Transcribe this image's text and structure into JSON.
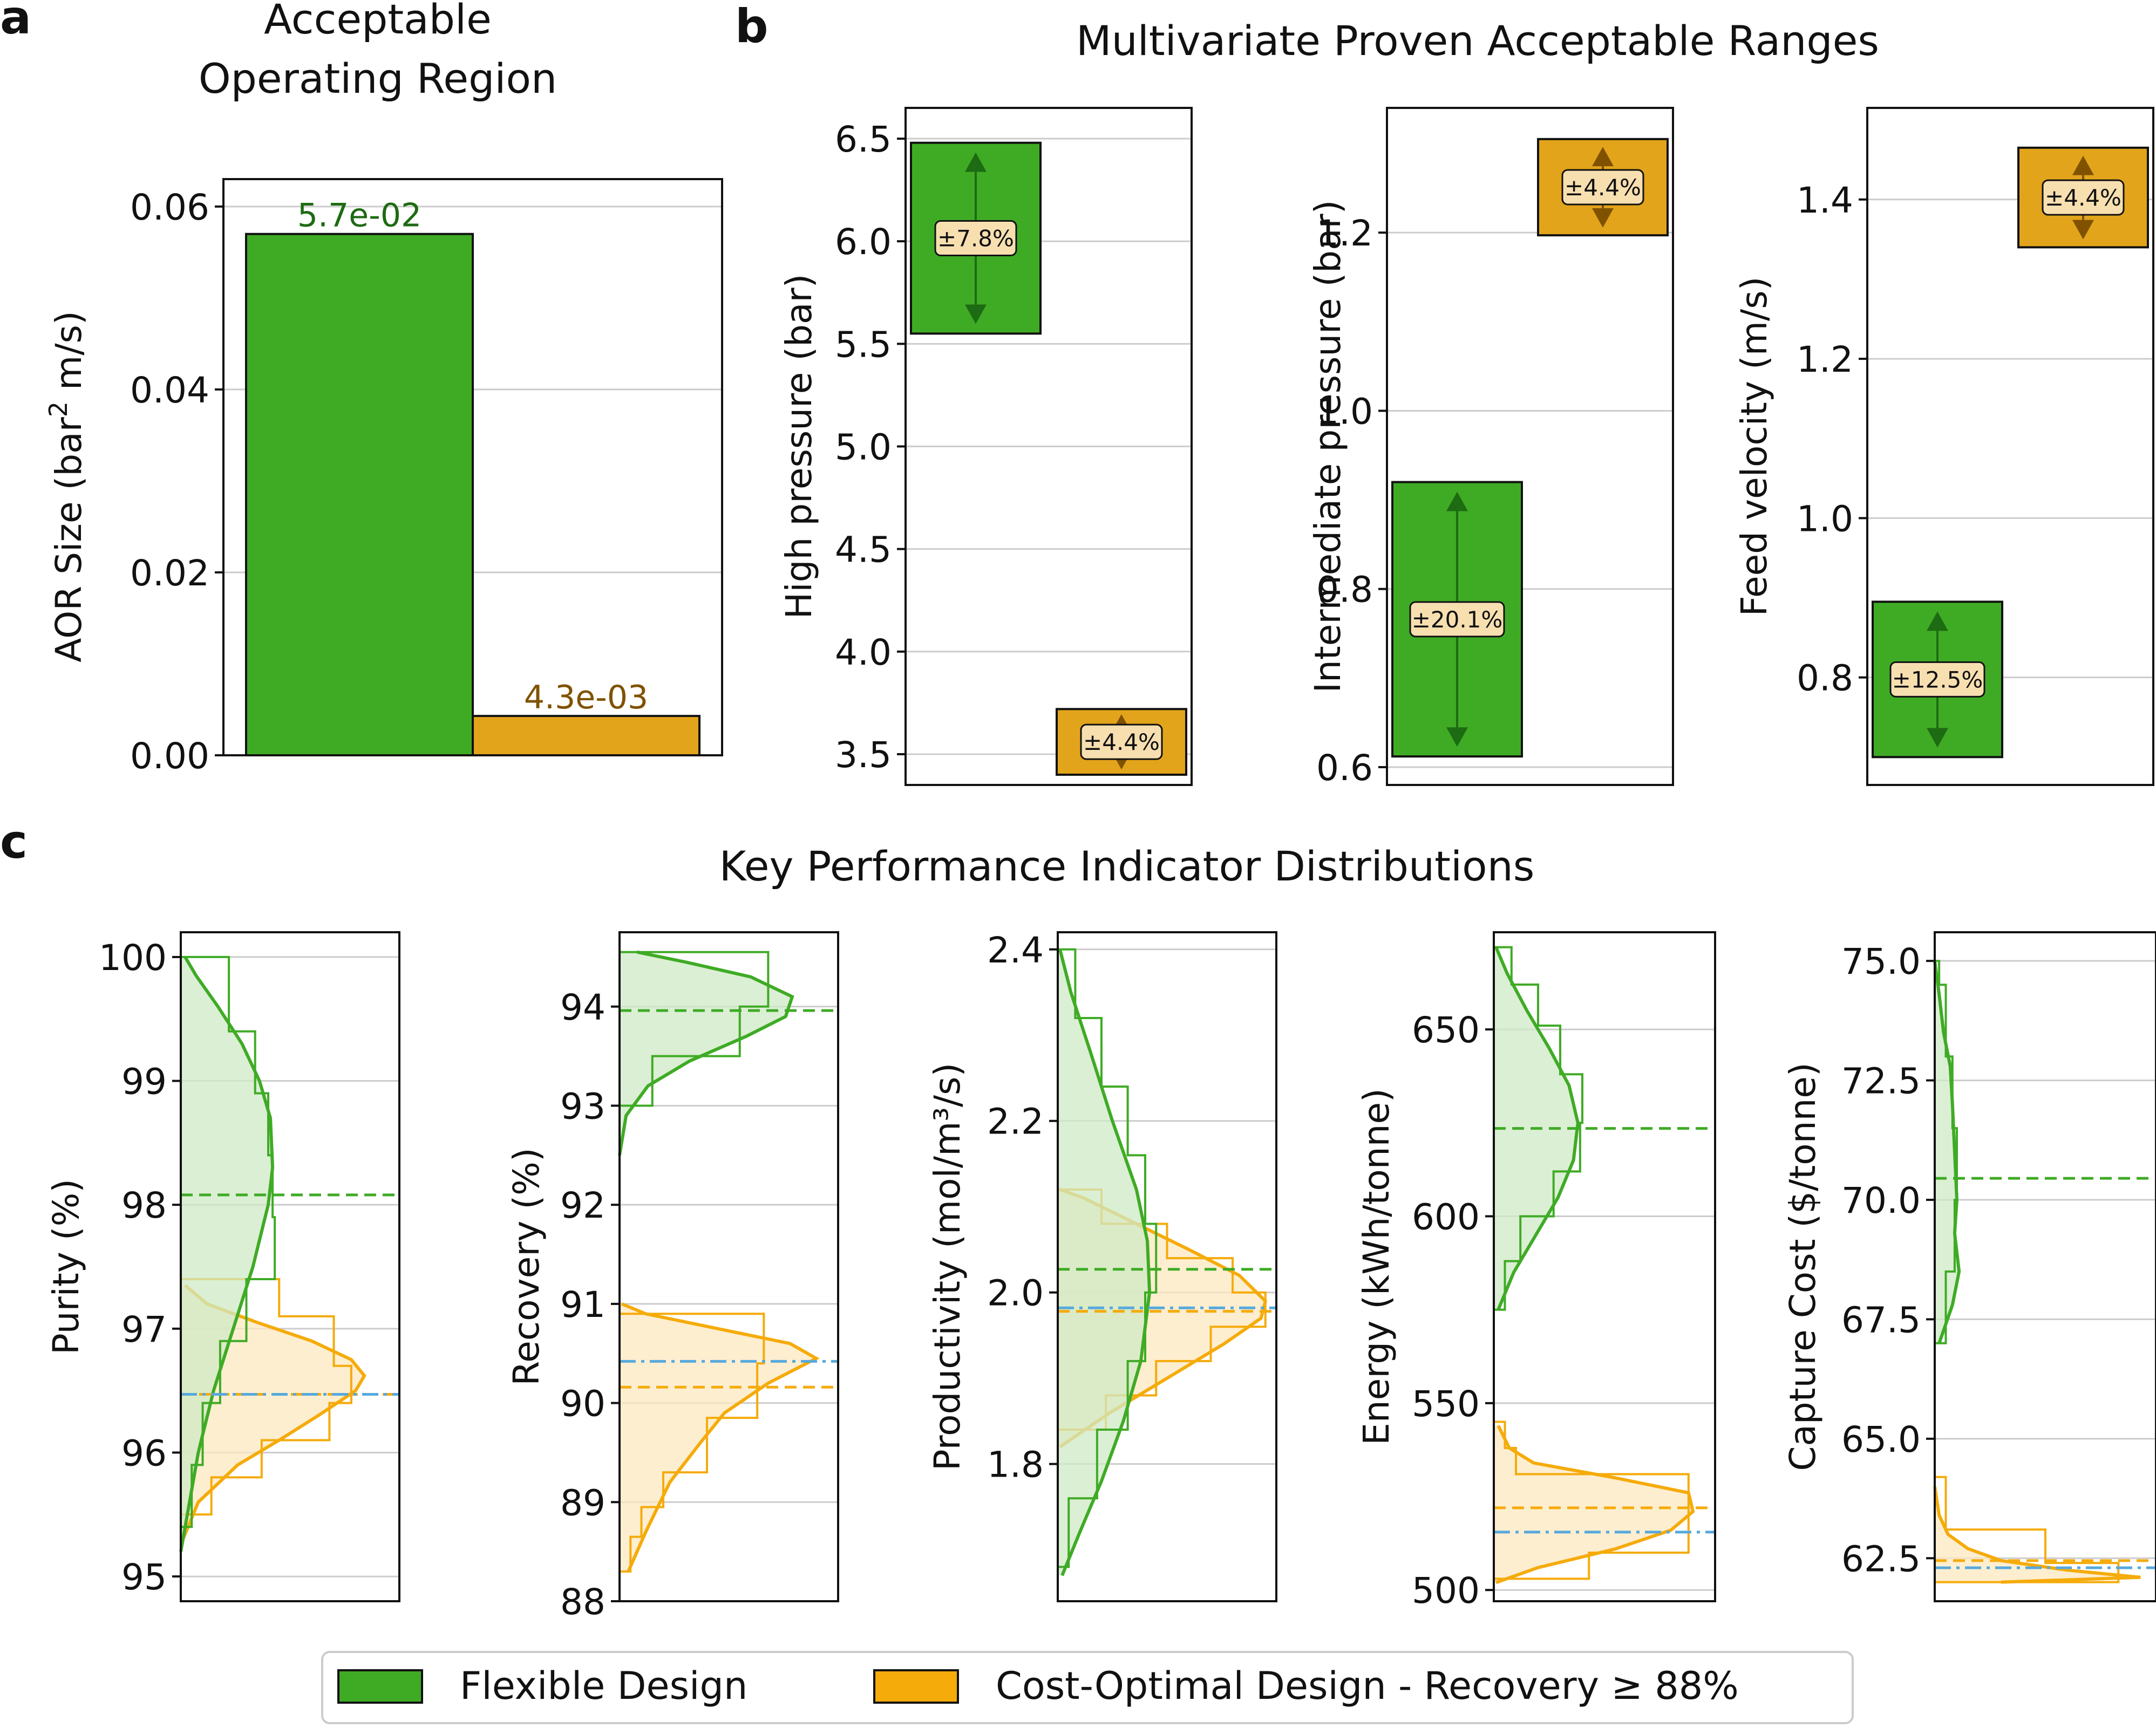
{
  "colors": {
    "flexible": "#3fab25",
    "flexible_dark": "#1d6b12",
    "flexible_fill": "#cfe9c6",
    "costopt": "#e2a41a",
    "costopt_line": "#f5ab0a",
    "costopt_fill": "#fde8c0",
    "costopt_dark": "#805200",
    "label_box": "#f7dfb0",
    "blue": "#56a9dc"
  },
  "panel_labels": {
    "a": "a",
    "b": "b",
    "c": "c"
  },
  "panel_a": {
    "title_line1": "Acceptable",
    "title_line2": "Operating Region",
    "ylabel_main": "AOR Size (bar",
    "ylabel_sup": "2",
    "ylabel_end": " m/s)"
  },
  "panel_b": {
    "title": "Multivariate Proven Acceptable Ranges"
  },
  "panel_c": {
    "title": "Key Performance Indicator Distributions"
  },
  "legend": {
    "flexible": "Flexible Design",
    "costopt": "Cost-Optimal Design - Recovery ≥ 88%"
  },
  "chart_data": [
    {
      "id": "aor",
      "type": "bar",
      "categories": [
        "Flexible Design",
        "Cost-Optimal Design - Recovery ≥ 88%"
      ],
      "values": [
        0.057,
        0.0043
      ],
      "data_labels": [
        "5.7e-02",
        "4.3e-03"
      ],
      "ylabel": "AOR Size (bar² m/s)",
      "ylim": [
        0,
        0.063
      ],
      "yticks": [
        0.0,
        0.02,
        0.04,
        0.06
      ],
      "ytick_labels": [
        "0.00",
        "0.02",
        "0.04",
        "0.06"
      ]
    },
    {
      "id": "par_high",
      "type": "range",
      "ylabel": "High pressure (bar)",
      "ylim": [
        3.35,
        6.65
      ],
      "yticks": [
        3.5,
        4.0,
        4.5,
        5.0,
        5.5,
        6.0,
        6.5
      ],
      "ytick_labels": [
        "3.5",
        "4.0",
        "4.5",
        "5.0",
        "5.5",
        "6.0",
        "6.5"
      ],
      "flexible": {
        "low": 5.55,
        "high": 6.48,
        "label": "±7.8%"
      },
      "costopt": {
        "low": 3.4,
        "high": 3.72,
        "label": "±4.4%"
      }
    },
    {
      "id": "par_intermediate",
      "type": "range",
      "ylabel": "Intermediate pressure (bar)",
      "ylim": [
        0.58,
        1.34
      ],
      "yticks": [
        0.6,
        0.8,
        1.0,
        1.2
      ],
      "ytick_labels": [
        "0.6",
        "0.8",
        "1.0",
        "1.2"
      ],
      "flexible": {
        "low": 0.612,
        "high": 0.92,
        "label": "±20.1%"
      },
      "costopt": {
        "low": 1.197,
        "high": 1.305,
        "label": "±4.4%"
      }
    },
    {
      "id": "par_velocity",
      "type": "range",
      "ylabel": "Feed velocity (m/s)",
      "ylim": [
        0.665,
        1.515
      ],
      "yticks": [
        0.8,
        1.0,
        1.2,
        1.4
      ],
      "ytick_labels": [
        "0.8",
        "1.0",
        "1.2",
        "1.4"
      ],
      "flexible": {
        "low": 0.7,
        "high": 0.895,
        "label": "±12.5%"
      },
      "costopt": {
        "low": 1.34,
        "high": 1.465,
        "label": "±4.4%"
      }
    },
    {
      "id": "kpi_purity",
      "type": "histogram",
      "ylabel": "Purity  (%)",
      "ylim": [
        94.8,
        100.2
      ],
      "yticks": [
        95,
        96,
        97,
        98,
        99,
        100
      ],
      "ytick_labels": [
        "95",
        "96",
        "97",
        "98",
        "99",
        "100"
      ],
      "xmax": 1.0,
      "flexible": {
        "hist_edges": [
          95.4,
          95.9,
          96.4,
          96.9,
          97.4,
          97.9,
          98.4,
          98.9,
          99.4,
          100.0
        ],
        "hist_counts": [
          0.05,
          0.1,
          0.18,
          0.3,
          0.43,
          0.42,
          0.4,
          0.34,
          0.22
        ],
        "mean": 98.08,
        "kde": [
          [
            95.2,
            0.0
          ],
          [
            95.6,
            0.04
          ],
          [
            96.0,
            0.08
          ],
          [
            96.5,
            0.15
          ],
          [
            97.0,
            0.24
          ],
          [
            97.5,
            0.33
          ],
          [
            98.0,
            0.4
          ],
          [
            98.3,
            0.42
          ],
          [
            98.7,
            0.41
          ],
          [
            99.0,
            0.36
          ],
          [
            99.3,
            0.28
          ],
          [
            99.6,
            0.17
          ],
          [
            99.85,
            0.07
          ],
          [
            100.0,
            0.02
          ]
        ]
      },
      "costopt": {
        "hist_edges": [
          95.5,
          95.8,
          96.1,
          96.4,
          96.7,
          97.1,
          97.4
        ],
        "hist_counts": [
          0.14,
          0.37,
          0.68,
          0.78,
          0.7,
          0.45
        ],
        "mean": 96.47,
        "median": 96.47,
        "kde": [
          [
            95.3,
            0.01
          ],
          [
            95.6,
            0.08
          ],
          [
            95.9,
            0.26
          ],
          [
            96.1,
            0.45
          ],
          [
            96.3,
            0.63
          ],
          [
            96.5,
            0.8
          ],
          [
            96.62,
            0.84
          ],
          [
            96.75,
            0.78
          ],
          [
            96.9,
            0.6
          ],
          [
            97.05,
            0.35
          ],
          [
            97.2,
            0.12
          ],
          [
            97.35,
            0.02
          ]
        ]
      }
    },
    {
      "id": "kpi_recovery",
      "type": "histogram",
      "ylabel": "Recovery  (%)",
      "ylim": [
        88.0,
        94.75
      ],
      "yticks": [
        88,
        89,
        90,
        91,
        92,
        93,
        94
      ],
      "ytick_labels": [
        "88",
        "89",
        "90",
        "91",
        "92",
        "93",
        "94"
      ],
      "xmax": 1.0,
      "flexible": {
        "hist_edges": [
          93.0,
          93.5,
          94.0,
          94.55
        ],
        "hist_counts": [
          0.15,
          0.55,
          0.68
        ],
        "mean": 93.96,
        "kde": [
          [
            92.5,
            0.0
          ],
          [
            92.9,
            0.03
          ],
          [
            93.2,
            0.13
          ],
          [
            93.45,
            0.32
          ],
          [
            93.7,
            0.58
          ],
          [
            93.9,
            0.76
          ],
          [
            94.1,
            0.79
          ],
          [
            94.3,
            0.6
          ],
          [
            94.45,
            0.3
          ],
          [
            94.55,
            0.08
          ]
        ]
      },
      "costopt": {
        "hist_edges": [
          88.3,
          88.65,
          88.95,
          89.3,
          89.85,
          90.4,
          90.9
        ],
        "hist_counts": [
          0.05,
          0.1,
          0.2,
          0.4,
          0.63,
          0.66
        ],
        "mean": 90.16,
        "median": 90.42,
        "kde": [
          [
            88.3,
            0.04
          ],
          [
            88.7,
            0.12
          ],
          [
            89.2,
            0.23
          ],
          [
            89.6,
            0.37
          ],
          [
            89.9,
            0.48
          ],
          [
            90.2,
            0.68
          ],
          [
            90.45,
            0.9
          ],
          [
            90.6,
            0.78
          ],
          [
            90.75,
            0.45
          ],
          [
            90.9,
            0.12
          ],
          [
            91.0,
            0.01
          ]
        ]
      }
    },
    {
      "id": "kpi_productivity",
      "type": "histogram",
      "ylabel": "Productivity  (mol/m³/s)",
      "ylim": [
        1.64,
        2.42
      ],
      "yticks": [
        1.8,
        2.0,
        2.2,
        2.4
      ],
      "ytick_labels": [
        "1.8",
        "2.0",
        "2.2",
        "2.4"
      ],
      "xmax": 1.0,
      "flexible": {
        "hist_edges": [
          1.68,
          1.76,
          1.84,
          1.92,
          2.0,
          2.08,
          2.16,
          2.24,
          2.32,
          2.4
        ],
        "hist_counts": [
          0.05,
          0.18,
          0.32,
          0.4,
          0.45,
          0.4,
          0.32,
          0.2,
          0.08
        ],
        "mean": 2.027,
        "kde": [
          [
            1.67,
            0.02
          ],
          [
            1.72,
            0.1
          ],
          [
            1.78,
            0.2
          ],
          [
            1.85,
            0.3
          ],
          [
            1.92,
            0.38
          ],
          [
            2.0,
            0.42
          ],
          [
            2.06,
            0.41
          ],
          [
            2.12,
            0.36
          ],
          [
            2.2,
            0.25
          ],
          [
            2.28,
            0.15
          ],
          [
            2.35,
            0.06
          ],
          [
            2.4,
            0.01
          ]
        ]
      },
      "costopt": {
        "hist_edges": [
          1.84,
          1.88,
          1.92,
          1.96,
          2.0,
          2.04,
          2.08,
          2.12
        ],
        "hist_counts": [
          0.22,
          0.45,
          0.7,
          0.95,
          0.8,
          0.5,
          0.2
        ],
        "mean": 1.978,
        "median": 1.982,
        "kde": [
          [
            1.82,
            0.01
          ],
          [
            1.86,
            0.24
          ],
          [
            1.9,
            0.5
          ],
          [
            1.94,
            0.76
          ],
          [
            1.97,
            0.93
          ],
          [
            1.99,
            0.95
          ],
          [
            2.02,
            0.83
          ],
          [
            2.05,
            0.6
          ],
          [
            2.08,
            0.36
          ],
          [
            2.11,
            0.12
          ],
          [
            2.12,
            0.01
          ]
        ]
      }
    },
    {
      "id": "kpi_energy",
      "type": "histogram",
      "ylabel": "Energy  (kWh/tonne)",
      "ylim": [
        497,
        676
      ],
      "yticks": [
        500,
        550,
        600,
        650
      ],
      "ytick_labels": [
        "500",
        "550",
        "600",
        "650"
      ],
      "xmax": 1.0,
      "flexible": {
        "hist_edges": [
          575,
          588,
          600,
          612,
          625,
          638,
          651,
          662,
          672
        ],
        "hist_counts": [
          0.05,
          0.12,
          0.27,
          0.39,
          0.4,
          0.3,
          0.2,
          0.08
        ],
        "mean": 623.5,
        "kde": [
          [
            575,
            0.02
          ],
          [
            585,
            0.09
          ],
          [
            595,
            0.19
          ],
          [
            605,
            0.29
          ],
          [
            615,
            0.36
          ],
          [
            625,
            0.38
          ],
          [
            635,
            0.34
          ],
          [
            645,
            0.25
          ],
          [
            655,
            0.15
          ],
          [
            665,
            0.06
          ],
          [
            672,
            0.01
          ]
        ]
      },
      "costopt": {
        "hist_edges": [
          503,
          510,
          517,
          524,
          531,
          538,
          545
        ],
        "hist_counts": [
          0.43,
          0.88,
          0.88,
          0.88,
          0.1,
          0.05
        ],
        "mean": 522.0,
        "median": 515.5,
        "kde": [
          [
            502,
            0.01
          ],
          [
            506,
            0.2
          ],
          [
            511,
            0.55
          ],
          [
            516,
            0.8
          ],
          [
            521,
            0.9
          ],
          [
            526,
            0.88
          ],
          [
            530,
            0.55
          ],
          [
            534,
            0.18
          ],
          [
            538,
            0.07
          ],
          [
            544,
            0.02
          ]
        ]
      }
    },
    {
      "id": "kpi_cost",
      "type": "histogram",
      "ylabel": "Capture Cost  ($/tonne)",
      "ylim": [
        61.6,
        75.6
      ],
      "yticks": [
        62.5,
        65.0,
        67.5,
        70.0,
        72.5,
        75.0
      ],
      "ytick_labels": [
        "62.5",
        "65.0",
        "67.5",
        "70.0",
        "72.5",
        "75.0"
      ],
      "xmax": 1.0,
      "flexible": {
        "hist_edges": [
          67.0,
          68.5,
          70.0,
          71.5,
          73.0,
          74.5,
          75.0
        ],
        "hist_counts": [
          0.05,
          0.09,
          0.1,
          0.08,
          0.05,
          0.02
        ],
        "mean": 70.45,
        "kde": [
          [
            67.0,
            0.02
          ],
          [
            67.8,
            0.08
          ],
          [
            68.5,
            0.11
          ],
          [
            69.3,
            0.09
          ],
          [
            70.0,
            0.1
          ],
          [
            71.0,
            0.09
          ],
          [
            72.0,
            0.08
          ],
          [
            72.8,
            0.07
          ],
          [
            73.5,
            0.04
          ],
          [
            74.3,
            0.02
          ],
          [
            75.0,
            0.0
          ]
        ]
      },
      "costopt": {
        "hist_edges": [
          62.0,
          62.4,
          62.8,
          63.1,
          64.2
        ],
        "hist_counts": [
          0.83,
          0.5,
          0.5,
          0.05
        ],
        "mean": 62.45,
        "median": 62.3,
        "kde": [
          [
            62.0,
            0.3
          ],
          [
            62.1,
            0.93
          ],
          [
            62.25,
            0.6
          ],
          [
            62.45,
            0.3
          ],
          [
            62.7,
            0.15
          ],
          [
            63.0,
            0.06
          ],
          [
            63.4,
            0.02
          ],
          [
            64.0,
            0.0
          ]
        ]
      }
    }
  ]
}
